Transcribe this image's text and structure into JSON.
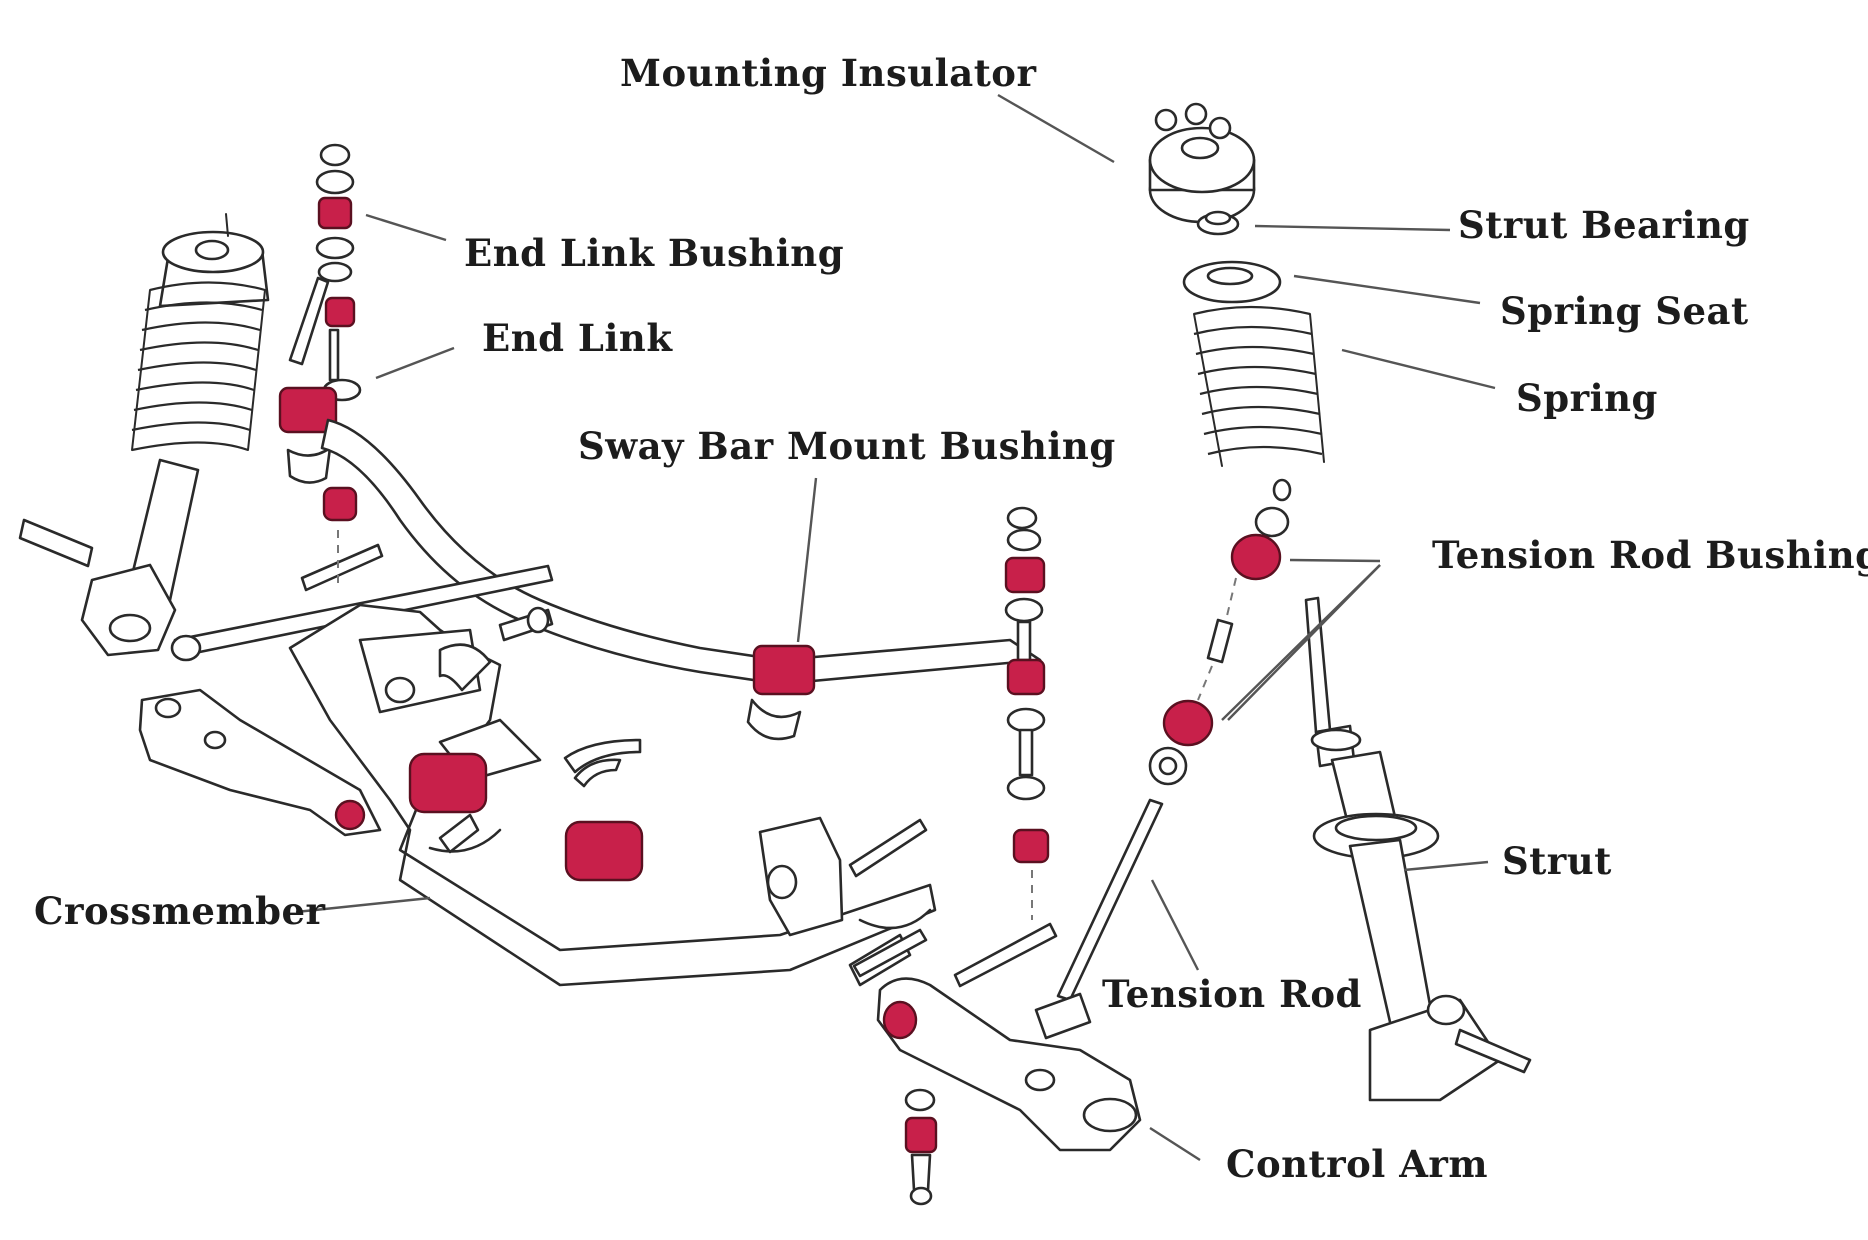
{
  "colors": {
    "bushing": "#c8204a",
    "line": "#2a2a2a",
    "background": "#ffffff"
  },
  "labels": {
    "mounting_insulator": "Mounting Insulator",
    "strut_bearing": "Strut Bearing",
    "spring_seat": "Spring Seat",
    "spring": "Spring",
    "end_link_bushing": "End Link Bushing",
    "end_link": "End Link",
    "sway_bar_mount_bushing": "Sway Bar Mount Bushing",
    "tension_rod_bushings": "Tension Rod Bushings",
    "strut": "Strut",
    "crossmember": "Crossmember",
    "tension_rod": "Tension Rod",
    "control_arm": "Control Arm"
  }
}
